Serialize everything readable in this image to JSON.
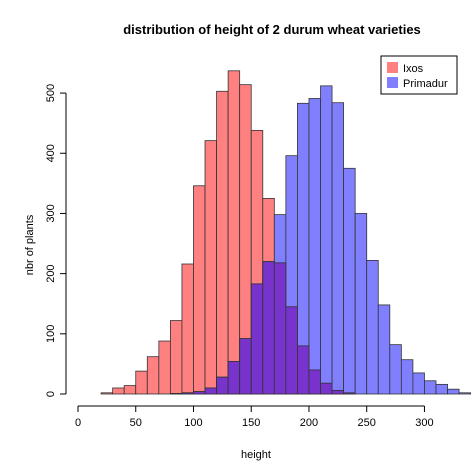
{
  "chart_data": {
    "type": "bar",
    "title": "distribution of height of 2 durum wheat varieties",
    "xlabel": "height",
    "ylabel": "nbr of plants",
    "xlim": [
      0,
      310
    ],
    "ylim": [
      0,
      540
    ],
    "xticks": [
      0,
      50,
      100,
      150,
      200,
      250,
      300
    ],
    "yticks": [
      0,
      100,
      200,
      300,
      400,
      500
    ],
    "bin_width": 10,
    "legend_position": "top-right",
    "overlap_color": "#7733cc",
    "series": [
      {
        "name": "Ixos",
        "color": "#ff8080",
        "stroke": "#333333",
        "bins": [
          {
            "x0": 20,
            "x1": 30,
            "value": 2
          },
          {
            "x0": 30,
            "x1": 40,
            "value": 10
          },
          {
            "x0": 40,
            "x1": 50,
            "value": 14
          },
          {
            "x0": 50,
            "x1": 60,
            "value": 38
          },
          {
            "x0": 60,
            "x1": 70,
            "value": 62
          },
          {
            "x0": 70,
            "x1": 80,
            "value": 88
          },
          {
            "x0": 80,
            "x1": 90,
            "value": 122
          },
          {
            "x0": 90,
            "x1": 100,
            "value": 216
          },
          {
            "x0": 100,
            "x1": 110,
            "value": 346
          },
          {
            "x0": 110,
            "x1": 120,
            "value": 421
          },
          {
            "x0": 120,
            "x1": 130,
            "value": 503
          },
          {
            "x0": 130,
            "x1": 140,
            "value": 537
          },
          {
            "x0": 140,
            "x1": 150,
            "value": 514
          },
          {
            "x0": 150,
            "x1": 160,
            "value": 438
          },
          {
            "x0": 160,
            "x1": 170,
            "value": 325
          },
          {
            "x0": 170,
            "x1": 180,
            "value": 218
          },
          {
            "x0": 180,
            "x1": 190,
            "value": 145
          },
          {
            "x0": 190,
            "x1": 200,
            "value": 80
          },
          {
            "x0": 200,
            "x1": 210,
            "value": 40
          },
          {
            "x0": 210,
            "x1": 220,
            "value": 18
          },
          {
            "x0": 220,
            "x1": 230,
            "value": 6
          },
          {
            "x0": 230,
            "x1": 240,
            "value": 2
          }
        ]
      },
      {
        "name": "Primadur",
        "color": "#8080ff",
        "stroke": "#333333",
        "bins": [
          {
            "x0": 80,
            "x1": 90,
            "value": 1
          },
          {
            "x0": 90,
            "x1": 100,
            "value": 2
          },
          {
            "x0": 100,
            "x1": 110,
            "value": 4
          },
          {
            "x0": 110,
            "x1": 120,
            "value": 10
          },
          {
            "x0": 120,
            "x1": 130,
            "value": 28
          },
          {
            "x0": 130,
            "x1": 140,
            "value": 54
          },
          {
            "x0": 140,
            "x1": 150,
            "value": 92
          },
          {
            "x0": 150,
            "x1": 160,
            "value": 183
          },
          {
            "x0": 160,
            "x1": 170,
            "value": 220
          },
          {
            "x0": 170,
            "x1": 180,
            "value": 298
          },
          {
            "x0": 180,
            "x1": 190,
            "value": 396
          },
          {
            "x0": 190,
            "x1": 200,
            "value": 483
          },
          {
            "x0": 200,
            "x1": 210,
            "value": 491
          },
          {
            "x0": 210,
            "x1": 220,
            "value": 512
          },
          {
            "x0": 220,
            "x1": 230,
            "value": 484
          },
          {
            "x0": 230,
            "x1": 240,
            "value": 375
          },
          {
            "x0": 240,
            "x1": 250,
            "value": 300
          },
          {
            "x0": 250,
            "x1": 260,
            "value": 222
          },
          {
            "x0": 260,
            "x1": 270,
            "value": 148
          },
          {
            "x0": 270,
            "x1": 280,
            "value": 82
          },
          {
            "x0": 280,
            "x1": 290,
            "value": 57
          },
          {
            "x0": 290,
            "x1": 300,
            "value": 35
          },
          {
            "x0": 300,
            "x1": 310,
            "value": 22
          },
          {
            "x0": 310,
            "x1": 320,
            "value": 16
          },
          {
            "x0": 320,
            "x1": 330,
            "value": 8
          },
          {
            "x0": 330,
            "x1": 340,
            "value": 2
          }
        ]
      }
    ]
  }
}
